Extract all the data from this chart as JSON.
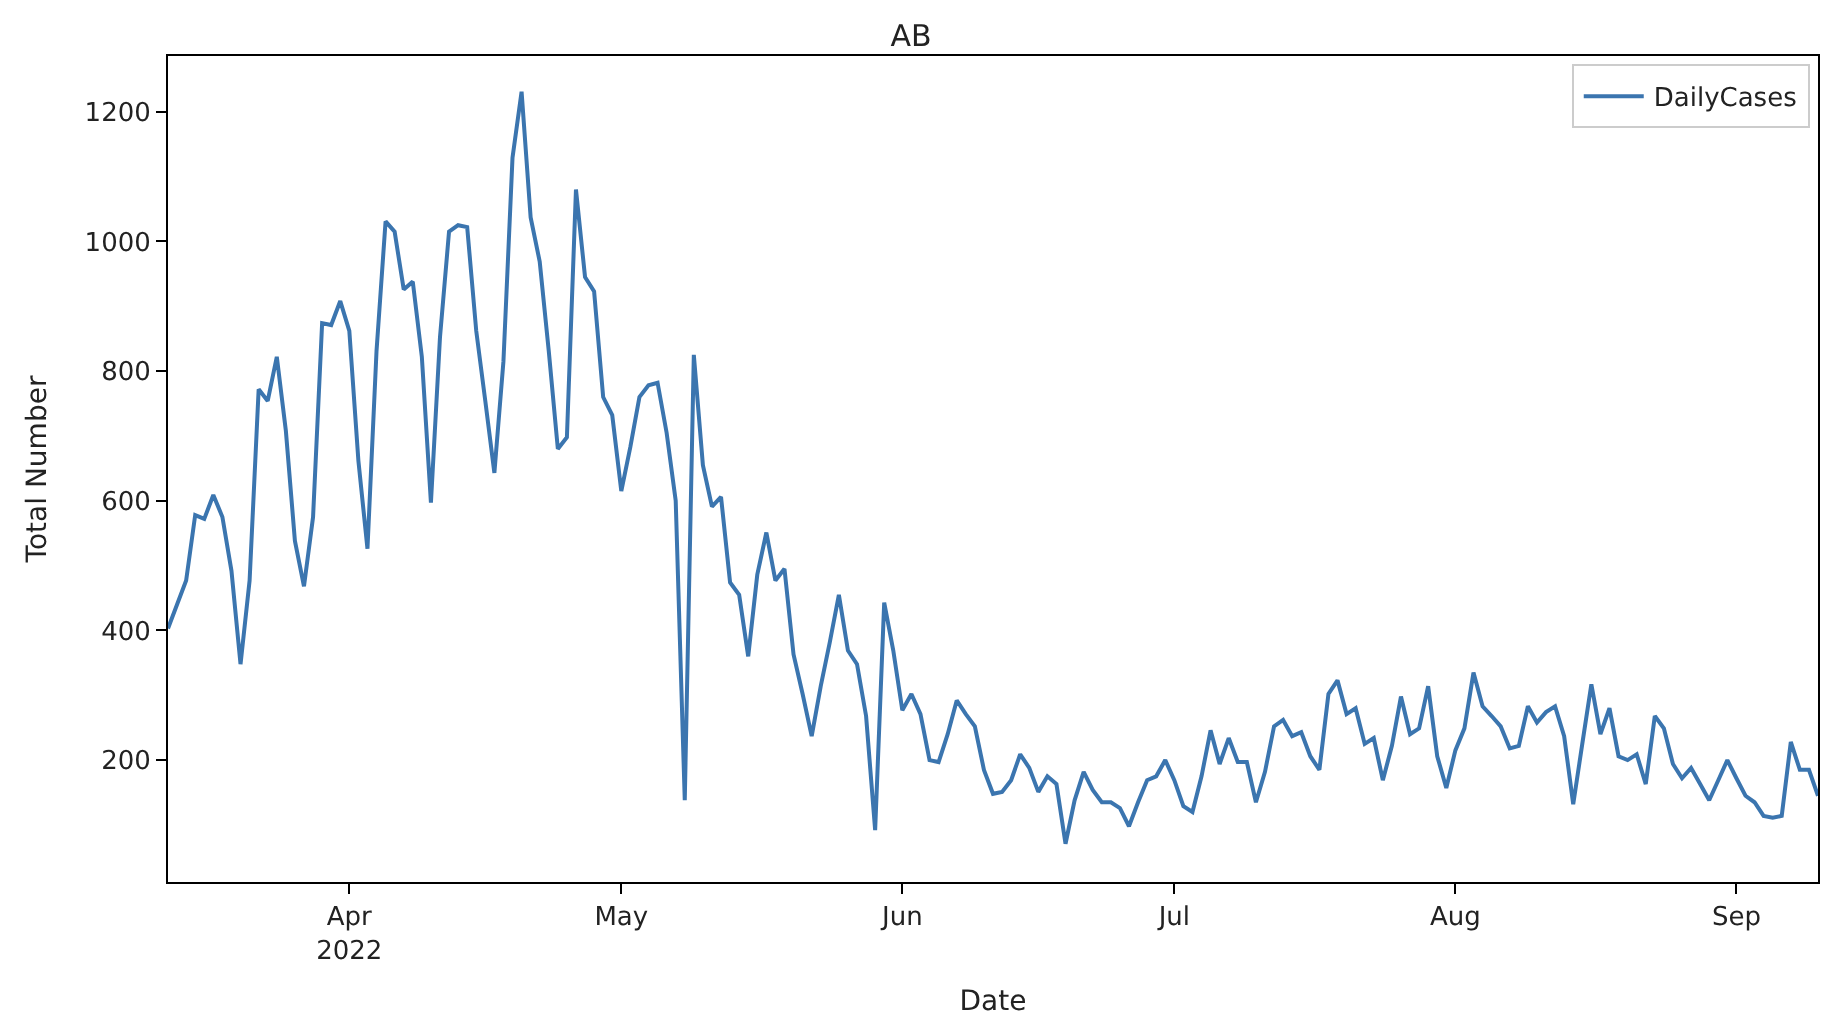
{
  "chart_data": {
    "type": "line",
    "title": "AB",
    "xlabel": "Date",
    "ylabel": "Total Number",
    "x": [
      "2022-03-12",
      "2022-03-13",
      "2022-03-14",
      "2022-03-15",
      "2022-03-16",
      "2022-03-17",
      "2022-03-18",
      "2022-03-19",
      "2022-03-20",
      "2022-03-21",
      "2022-03-22",
      "2022-03-23",
      "2022-03-24",
      "2022-03-25",
      "2022-03-26",
      "2022-03-27",
      "2022-03-28",
      "2022-03-29",
      "2022-03-30",
      "2022-03-31",
      "2022-04-01",
      "2022-04-02",
      "2022-04-03",
      "2022-04-04",
      "2022-04-05",
      "2022-04-06",
      "2022-04-07",
      "2022-04-08",
      "2022-04-09",
      "2022-04-10",
      "2022-04-11",
      "2022-04-12",
      "2022-04-13",
      "2022-04-14",
      "2022-04-15",
      "2022-04-16",
      "2022-04-17",
      "2022-04-18",
      "2022-04-19",
      "2022-04-20",
      "2022-04-21",
      "2022-04-22",
      "2022-04-23",
      "2022-04-24",
      "2022-04-25",
      "2022-04-26",
      "2022-04-27",
      "2022-04-28",
      "2022-04-29",
      "2022-04-30",
      "2022-05-01",
      "2022-05-02",
      "2022-05-03",
      "2022-05-04",
      "2022-05-05",
      "2022-05-06",
      "2022-05-07",
      "2022-05-08",
      "2022-05-09",
      "2022-05-10",
      "2022-05-11",
      "2022-05-12",
      "2022-05-13",
      "2022-05-14",
      "2022-05-15",
      "2022-05-16",
      "2022-05-17",
      "2022-05-18",
      "2022-05-19",
      "2022-05-20",
      "2022-05-21",
      "2022-05-22",
      "2022-05-23",
      "2022-05-24",
      "2022-05-25",
      "2022-05-26",
      "2022-05-27",
      "2022-05-28",
      "2022-05-29",
      "2022-05-30",
      "2022-05-31",
      "2022-06-01",
      "2022-06-02",
      "2022-06-03",
      "2022-06-04",
      "2022-06-05",
      "2022-06-06",
      "2022-06-07",
      "2022-06-08",
      "2022-06-09",
      "2022-06-10",
      "2022-06-11",
      "2022-06-12",
      "2022-06-13",
      "2022-06-14",
      "2022-06-15",
      "2022-06-16",
      "2022-06-17",
      "2022-06-18",
      "2022-06-19",
      "2022-06-20",
      "2022-06-21",
      "2022-06-22",
      "2022-06-23",
      "2022-06-24",
      "2022-06-25",
      "2022-06-26",
      "2022-06-27",
      "2022-06-28",
      "2022-06-29",
      "2022-06-30",
      "2022-07-01",
      "2022-07-02",
      "2022-07-03",
      "2022-07-04",
      "2022-07-05",
      "2022-07-06",
      "2022-07-07",
      "2022-07-08",
      "2022-07-09",
      "2022-07-10",
      "2022-07-11",
      "2022-07-12",
      "2022-07-13",
      "2022-07-14",
      "2022-07-15",
      "2022-07-16",
      "2022-07-17",
      "2022-07-18",
      "2022-07-19",
      "2022-07-20",
      "2022-07-21",
      "2022-07-22",
      "2022-07-23",
      "2022-07-24",
      "2022-07-25",
      "2022-07-26",
      "2022-07-27",
      "2022-07-28",
      "2022-07-29",
      "2022-07-30",
      "2022-07-31",
      "2022-08-01",
      "2022-08-02",
      "2022-08-03",
      "2022-08-04",
      "2022-08-05",
      "2022-08-06",
      "2022-08-07",
      "2022-08-08",
      "2022-08-09",
      "2022-08-10",
      "2022-08-11",
      "2022-08-12",
      "2022-08-13",
      "2022-08-14",
      "2022-08-15",
      "2022-08-16",
      "2022-08-17",
      "2022-08-18",
      "2022-08-19",
      "2022-08-20",
      "2022-08-21",
      "2022-08-22",
      "2022-08-23",
      "2022-08-24",
      "2022-08-25",
      "2022-08-26",
      "2022-08-27",
      "2022-08-28",
      "2022-08-29",
      "2022-08-30",
      "2022-08-31",
      "2022-09-01",
      "2022-09-02",
      "2022-09-03",
      "2022-09-04",
      "2022-09-05",
      "2022-09-06",
      "2022-09-07",
      "2022-09-08",
      "2022-09-09",
      "2022-09-10"
    ],
    "series": [
      {
        "name": "DailyCases",
        "color": "#3b75af",
        "values": [
          403,
          440,
          477,
          578,
          572,
          609,
          575,
          492,
          348,
          477,
          772,
          754,
          822,
          708,
          538,
          468,
          575,
          874,
          871,
          908,
          862,
          662,
          526,
          831,
          1031,
          1015,
          926,
          938,
          822,
          597,
          852,
          1015,
          1025,
          1022,
          862,
          754,
          643,
          815,
          1129,
          1231,
          1037,
          969,
          831,
          680,
          698,
          1080,
          945,
          923,
          760,
          732,
          615,
          683,
          760,
          778,
          782,
          705,
          600,
          138,
          825,
          655,
          591,
          606,
          474,
          455,
          360,
          486,
          551,
          477,
          495,
          363,
          302,
          237,
          314,
          382,
          455,
          369,
          348,
          268,
          92,
          443,
          369,
          277,
          302,
          271,
          200,
          197,
          240,
          292,
          271,
          252,
          185,
          148,
          151,
          169,
          209,
          188,
          151,
          175,
          163,
          71,
          138,
          182,
          154,
          135,
          135,
          126,
          98,
          135,
          169,
          175,
          200,
          169,
          129,
          120,
          175,
          246,
          194,
          234,
          197,
          197,
          135,
          182,
          252,
          262,
          237,
          243,
          206,
          185,
          302,
          323,
          271,
          280,
          225,
          234,
          169,
          222,
          298,
          240,
          249,
          314,
          206,
          157,
          215,
          249,
          335,
          283,
          268,
          252,
          218,
          222,
          283,
          258,
          274,
          283,
          237,
          132,
          225,
          317,
          240,
          280,
          206,
          200,
          209,
          163,
          268,
          249,
          194,
          172,
          188,
          163,
          138,
          169,
          200,
          172,
          145,
          135,
          114,
          111,
          114,
          228,
          185,
          185,
          145
        ]
      }
    ],
    "xlim": [
      "2022-03-12",
      "2022-09-10"
    ],
    "xticks": [
      {
        "value": "2022-04-01",
        "label": "Apr\n2022"
      },
      {
        "value": "2022-05-01",
        "label": "May"
      },
      {
        "value": "2022-06-01",
        "label": "Jun"
      },
      {
        "value": "2022-07-01",
        "label": "Jul"
      },
      {
        "value": "2022-08-01",
        "label": "Aug"
      },
      {
        "value": "2022-09-01",
        "label": "Sep"
      }
    ],
    "ylim": [
      12,
      1286
    ],
    "yticks": [
      200,
      400,
      600,
      800,
      1000,
      1200
    ],
    "legend": "top right",
    "line_style": "solid",
    "marker": "none"
  }
}
